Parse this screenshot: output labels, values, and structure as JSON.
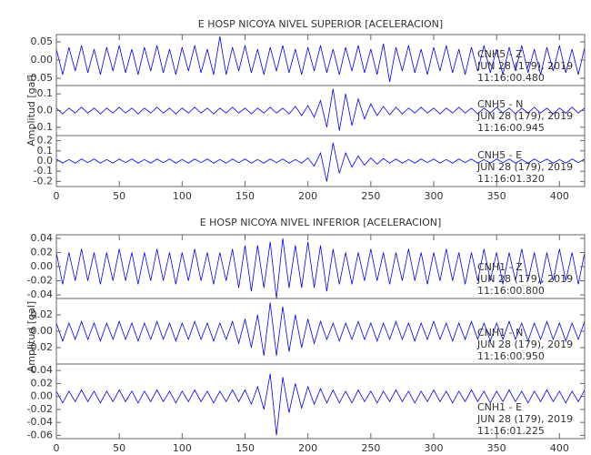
{
  "chart_data": [
    {
      "type": "line",
      "title": "E HOSP NICOYA NIVEL SUPERIOR [ACELERACION]",
      "ylabel": "Amplitud [gal]",
      "xlim": [
        0,
        420
      ],
      "xticks": [
        0,
        50,
        100,
        150,
        200,
        250,
        300,
        350,
        400
      ],
      "x": [
        0,
        5,
        10,
        15,
        20,
        25,
        30,
        35,
        40,
        45,
        50,
        55,
        60,
        65,
        70,
        75,
        80,
        85,
        90,
        95,
        100,
        105,
        110,
        115,
        120,
        125,
        130,
        135,
        140,
        145,
        150,
        155,
        160,
        165,
        170,
        175,
        180,
        185,
        190,
        195,
        200,
        205,
        210,
        215,
        220,
        225,
        230,
        235,
        240,
        245,
        250,
        255,
        260,
        265,
        270,
        275,
        280,
        285,
        290,
        295,
        300,
        305,
        310,
        315,
        320,
        325,
        330,
        335,
        340,
        345,
        350,
        355,
        360,
        365,
        370,
        375,
        380,
        385,
        390,
        395,
        400,
        405,
        410,
        415,
        420
      ],
      "panels": [
        {
          "labels": [
            "CNH5 - Z",
            "JUN 28 (179), 2019",
            "11:16:00.480"
          ],
          "color": "#0000ff",
          "ylim": [
            -0.07,
            0.07
          ],
          "yticks": [
            -0.05,
            {
              "value": 0,
              "label": "0.00"
            },
            0.05
          ],
          "values": [
            0.03,
            -0.04,
            0.035,
            -0.03,
            0.04,
            -0.035,
            0.03,
            -0.04,
            0.035,
            -0.03,
            0.04,
            -0.035,
            0.03,
            -0.04,
            0.035,
            -0.03,
            0.04,
            -0.035,
            0.03,
            -0.04,
            0.035,
            -0.03,
            0.04,
            -0.035,
            0.03,
            -0.04,
            0.065,
            -0.04,
            0.035,
            -0.03,
            0.04,
            -0.035,
            0.03,
            -0.04,
            0.035,
            -0.03,
            0.04,
            -0.035,
            0.03,
            -0.04,
            0.035,
            -0.03,
            0.04,
            -0.035,
            0.03,
            -0.04,
            0.035,
            -0.03,
            0.04,
            -0.035,
            0.03,
            -0.04,
            0.045,
            -0.06,
            0.035,
            -0.03,
            0.04,
            -0.035,
            0.03,
            -0.04,
            0.035,
            -0.03,
            0.04,
            -0.035,
            0.03,
            -0.04,
            0.035,
            -0.03,
            0.04,
            -0.035,
            0.03,
            -0.04,
            0.035,
            -0.03,
            0.04,
            -0.035,
            0.03,
            -0.04,
            0.035,
            -0.03,
            0.04,
            -0.035,
            0.03,
            -0.04,
            0.035
          ]
        },
        {
          "labels": [
            "CNH5 - N",
            "JUN 28 (179), 2019",
            "11:16:00.945"
          ],
          "color": "#0000ff",
          "ylim": [
            -0.15,
            0.15
          ],
          "yticks": [
            -0.1,
            {
              "value": 0,
              "label": "0.0"
            },
            0.1
          ],
          "values": [
            0.015,
            -0.02,
            0.015,
            -0.015,
            0.02,
            -0.015,
            0.015,
            -0.02,
            0.015,
            -0.015,
            0.02,
            -0.015,
            0.015,
            -0.02,
            0.015,
            -0.015,
            0.02,
            -0.015,
            0.015,
            -0.02,
            0.015,
            -0.015,
            0.02,
            -0.015,
            0.015,
            -0.02,
            0.015,
            -0.015,
            0.02,
            -0.015,
            0.015,
            -0.02,
            0.015,
            -0.015,
            0.02,
            -0.015,
            0.015,
            -0.02,
            0.025,
            -0.03,
            0.03,
            -0.04,
            0.06,
            -0.1,
            0.13,
            -0.12,
            0.1,
            -0.09,
            0.07,
            -0.05,
            0.04,
            -0.03,
            0.025,
            -0.025,
            0.02,
            -0.02,
            0.015,
            -0.015,
            0.02,
            -0.015,
            0.015,
            -0.02,
            0.015,
            -0.015,
            0.02,
            -0.015,
            0.015,
            -0.02,
            0.015,
            -0.015,
            0.02,
            -0.015,
            0.015,
            -0.02,
            0.015,
            -0.015,
            0.02,
            -0.015,
            0.015,
            -0.02,
            0.015,
            -0.015,
            0.02,
            -0.015,
            0.015
          ]
        },
        {
          "labels": [
            "CNH5 - E",
            "JUN 28 (179), 2019",
            "11:16:01.320"
          ],
          "color": "#0000ff",
          "ylim": [
            -0.25,
            0.25
          ],
          "yticks": [
            -0.2,
            -0.1,
            {
              "value": 0,
              "label": "0.0"
            },
            0.1,
            0.2
          ],
          "values": [
            0.02,
            -0.02,
            0.015,
            -0.02,
            0.02,
            -0.015,
            0.02,
            -0.02,
            0.015,
            -0.02,
            0.02,
            -0.015,
            0.02,
            -0.02,
            0.015,
            -0.02,
            0.02,
            -0.015,
            0.02,
            -0.02,
            0.015,
            -0.02,
            0.02,
            -0.015,
            0.02,
            -0.02,
            0.015,
            -0.02,
            0.02,
            -0.015,
            0.02,
            -0.02,
            0.015,
            -0.02,
            0.02,
            -0.015,
            0.02,
            -0.02,
            0.015,
            -0.02,
            0.03,
            -0.05,
            0.08,
            -0.2,
            0.18,
            -0.12,
            0.08,
            -0.06,
            0.05,
            -0.04,
            0.03,
            -0.03,
            0.025,
            -0.02,
            0.02,
            -0.02,
            0.015,
            -0.02,
            0.02,
            -0.015,
            0.02,
            -0.02,
            0.015,
            -0.02,
            0.02,
            -0.015,
            0.02,
            -0.02,
            0.015,
            -0.02,
            0.02,
            -0.015,
            0.02,
            -0.02,
            0.015,
            -0.02,
            0.02,
            -0.015,
            0.02,
            -0.02,
            0.015,
            -0.02,
            0.02,
            -0.015,
            0.02
          ]
        }
      ]
    },
    {
      "type": "line",
      "title": "E HOSP NICOYA NIVEL INFERIOR [ACELERACION]",
      "ylabel": "Amplitud [gal]",
      "xlim": [
        0,
        420
      ],
      "xticks": [
        0,
        50,
        100,
        150,
        200,
        250,
        300,
        350,
        400
      ],
      "x": [
        0,
        5,
        10,
        15,
        20,
        25,
        30,
        35,
        40,
        45,
        50,
        55,
        60,
        65,
        70,
        75,
        80,
        85,
        90,
        95,
        100,
        105,
        110,
        115,
        120,
        125,
        130,
        135,
        140,
        145,
        150,
        155,
        160,
        165,
        170,
        175,
        180,
        185,
        190,
        195,
        200,
        205,
        210,
        215,
        220,
        225,
        230,
        235,
        240,
        245,
        250,
        255,
        260,
        265,
        270,
        275,
        280,
        285,
        290,
        295,
        300,
        305,
        310,
        315,
        320,
        325,
        330,
        335,
        340,
        345,
        350,
        355,
        360,
        365,
        370,
        375,
        380,
        385,
        390,
        395,
        400,
        405,
        410,
        415,
        420
      ],
      "panels": [
        {
          "labels": [
            "CNH1 - Z",
            "JUN 28 (179), 2019",
            "11:16:00.800"
          ],
          "color": "#0000ff",
          "ylim": [
            -0.045,
            0.045
          ],
          "yticks": [
            -0.04,
            -0.02,
            {
              "value": 0,
              "label": "0.00"
            },
            0.02,
            0.04
          ],
          "values": [
            0.02,
            -0.025,
            0.02,
            -0.02,
            0.025,
            -0.02,
            0.02,
            -0.025,
            0.02,
            -0.02,
            0.025,
            -0.02,
            0.02,
            -0.025,
            0.02,
            -0.02,
            0.025,
            -0.02,
            0.02,
            -0.025,
            0.02,
            -0.02,
            0.025,
            -0.02,
            0.02,
            -0.025,
            0.02,
            -0.02,
            0.025,
            -0.03,
            0.03,
            -0.035,
            0.03,
            -0.03,
            0.035,
            -0.045,
            0.04,
            -0.03,
            0.03,
            -0.03,
            0.035,
            -0.03,
            0.03,
            -0.035,
            0.025,
            -0.025,
            0.02,
            -0.025,
            0.02,
            -0.02,
            0.025,
            -0.02,
            0.02,
            -0.025,
            0.02,
            -0.02,
            0.025,
            -0.02,
            0.02,
            -0.025,
            0.02,
            -0.02,
            0.025,
            -0.02,
            0.02,
            -0.025,
            0.02,
            -0.02,
            0.025,
            -0.02,
            0.02,
            -0.025,
            0.02,
            -0.02,
            0.025,
            -0.02,
            0.02,
            -0.025,
            0.02,
            -0.02,
            0.025,
            -0.02,
            0.02,
            -0.025,
            0.02
          ]
        },
        {
          "labels": [
            "CNH1 - N",
            "JUN 28 (179), 2019",
            "11:16:00.950"
          ],
          "color": "#0000ff",
          "ylim": [
            -0.04,
            0.04
          ],
          "yticks": [
            -0.02,
            {
              "value": 0,
              "label": "0.00"
            },
            0.02
          ],
          "values": [
            0.01,
            -0.012,
            0.01,
            -0.01,
            0.012,
            -0.01,
            0.01,
            -0.012,
            0.01,
            -0.01,
            0.012,
            -0.01,
            0.01,
            -0.012,
            0.01,
            -0.01,
            0.012,
            -0.01,
            0.01,
            -0.012,
            0.01,
            -0.01,
            0.012,
            -0.01,
            0.01,
            -0.012,
            0.01,
            -0.01,
            0.012,
            -0.015,
            0.015,
            -0.02,
            0.02,
            -0.03,
            0.035,
            -0.03,
            0.03,
            -0.025,
            0.02,
            -0.02,
            0.015,
            -0.015,
            0.012,
            -0.01,
            0.01,
            -0.012,
            0.01,
            -0.01,
            0.012,
            -0.01,
            0.01,
            -0.012,
            0.01,
            -0.01,
            0.012,
            -0.01,
            0.01,
            -0.012,
            0.01,
            -0.01,
            0.012,
            -0.01,
            0.01,
            -0.012,
            0.01,
            -0.01,
            0.012,
            -0.01,
            0.01,
            -0.012,
            0.01,
            -0.01,
            0.012,
            -0.01,
            0.01,
            -0.012,
            0.01,
            -0.01,
            0.012,
            -0.01,
            0.01,
            -0.012,
            0.01,
            -0.01,
            0.012
          ]
        },
        {
          "labels": [
            "CNH1 - E",
            "JUN 28 (179), 2019",
            "11:16:01.225"
          ],
          "color": "#0000ff",
          "ylim": [
            -0.065,
            0.05
          ],
          "yticks": [
            -0.06,
            -0.04,
            -0.02,
            {
              "value": 0,
              "label": "0.00"
            },
            0.02,
            0.04
          ],
          "values": [
            0.008,
            -0.01,
            0.008,
            -0.008,
            0.01,
            -0.008,
            0.008,
            -0.01,
            0.008,
            -0.008,
            0.01,
            -0.008,
            0.008,
            -0.01,
            0.008,
            -0.008,
            0.01,
            -0.008,
            0.008,
            -0.01,
            0.008,
            -0.008,
            0.01,
            -0.008,
            0.008,
            -0.01,
            0.008,
            -0.008,
            0.01,
            -0.008,
            0.01,
            -0.012,
            0.015,
            -0.02,
            0.035,
            -0.06,
            0.03,
            -0.025,
            0.02,
            -0.018,
            0.015,
            -0.012,
            0.012,
            -0.01,
            0.01,
            -0.01,
            0.008,
            -0.01,
            0.01,
            -0.008,
            0.008,
            -0.01,
            0.008,
            -0.008,
            0.01,
            -0.008,
            0.008,
            -0.01,
            0.008,
            -0.008,
            0.01,
            -0.008,
            0.008,
            -0.01,
            0.008,
            -0.008,
            0.01,
            -0.008,
            0.008,
            -0.01,
            0.008,
            -0.008,
            0.01,
            -0.008,
            0.008,
            -0.01,
            0.008,
            -0.008,
            0.01,
            -0.008,
            0.008,
            -0.01,
            0.008,
            -0.008,
            0.01
          ]
        }
      ]
    }
  ]
}
